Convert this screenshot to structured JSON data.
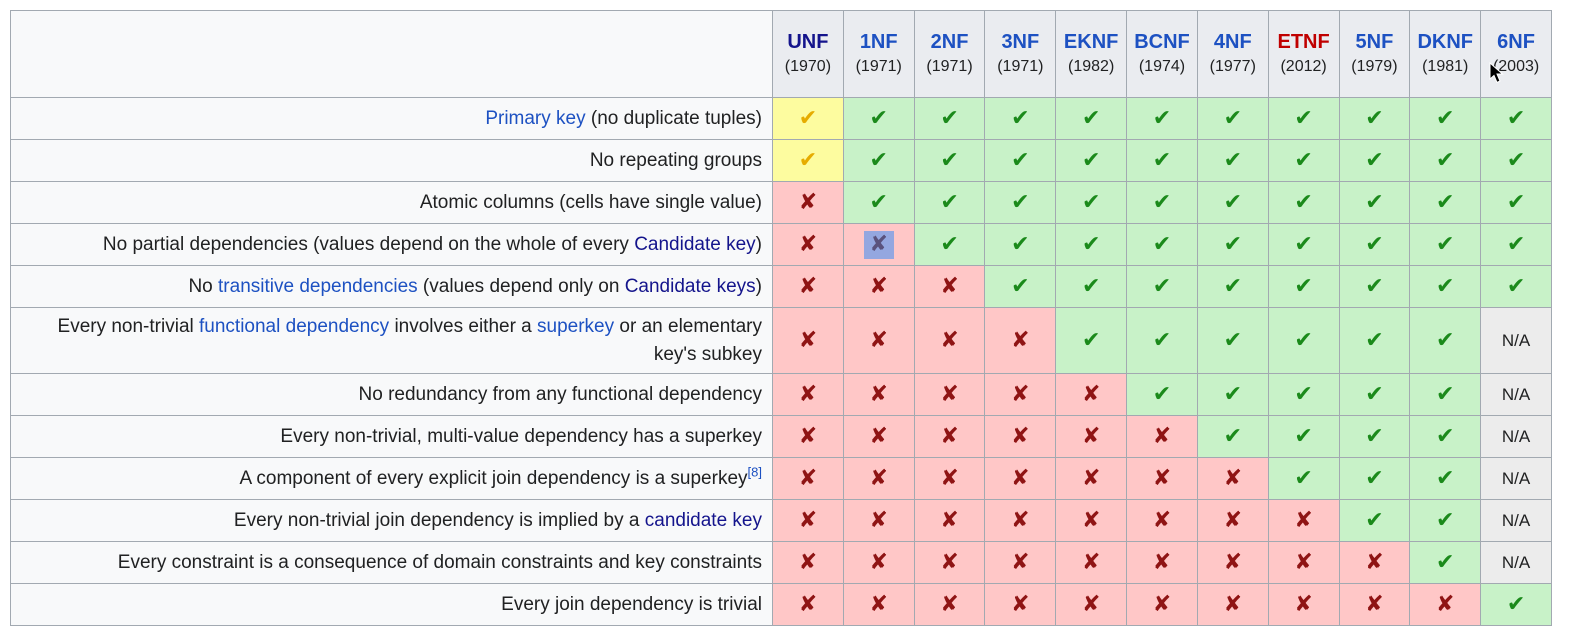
{
  "title": "Normal forms comparison table",
  "symbols": {
    "check": "✔",
    "cross": "✘",
    "na": "N/A"
  },
  "colors": {
    "link_blue": "#1d51c2",
    "link_navy": "#14148c",
    "link_red": "#c00000",
    "check_green": "#1b8a1b",
    "check_amber": "#e6ac00",
    "cross_red": "#8f1414",
    "bg_yes": "#c8f2c8",
    "bg_partial": "#fdfc9f",
    "bg_no": "#ffc7c7",
    "bg_na": "#ececec",
    "bg_header": "#eaecf0",
    "bg_label": "#f8f9fa",
    "border": "#a2a9b1",
    "selection_bg": "#94a7e0",
    "selection_fg": "#5a527d",
    "text": "#202122"
  },
  "header": {
    "corner": "",
    "columns": [
      {
        "abbr": "UNF",
        "year": "(1970)",
        "style": "visited"
      },
      {
        "abbr": "1NF",
        "year": "(1971)",
        "style": "link"
      },
      {
        "abbr": "2NF",
        "year": "(1971)",
        "style": "link"
      },
      {
        "abbr": "3NF",
        "year": "(1971)",
        "style": "link"
      },
      {
        "abbr": "EKNF",
        "year": "(1982)",
        "style": "link"
      },
      {
        "abbr": "BCNF",
        "year": "(1974)",
        "style": "link"
      },
      {
        "abbr": "4NF",
        "year": "(1977)",
        "style": "link"
      },
      {
        "abbr": "ETNF",
        "year": "(2012)",
        "style": "redlink"
      },
      {
        "abbr": "5NF",
        "year": "(1979)",
        "style": "link"
      },
      {
        "abbr": "DKNF",
        "year": "(1981)",
        "style": "link"
      },
      {
        "abbr": "6NF",
        "year": "(2003)",
        "style": "link"
      }
    ]
  },
  "rows": [
    {
      "label": [
        {
          "text": "Primary key",
          "link": "blue"
        },
        {
          "text": " (no duplicate tuples)"
        }
      ],
      "cells": [
        "partial",
        "yes",
        "yes",
        "yes",
        "yes",
        "yes",
        "yes",
        "yes",
        "yes",
        "yes",
        "yes"
      ]
    },
    {
      "label": [
        {
          "text": "No repeating groups"
        }
      ],
      "cells": [
        "partial",
        "yes",
        "yes",
        "yes",
        "yes",
        "yes",
        "yes",
        "yes",
        "yes",
        "yes",
        "yes"
      ]
    },
    {
      "label": [
        {
          "text": "Atomic columns (cells have single value)"
        }
      ],
      "cells": [
        "no",
        "yes",
        "yes",
        "yes",
        "yes",
        "yes",
        "yes",
        "yes",
        "yes",
        "yes",
        "yes"
      ]
    },
    {
      "label": [
        {
          "text": "No partial dependencies (values depend on the whole of every "
        },
        {
          "text": "Candidate key",
          "link": "navy"
        },
        {
          "text": ")"
        }
      ],
      "cells": [
        "no",
        "no_selected",
        "yes",
        "yes",
        "yes",
        "yes",
        "yes",
        "yes",
        "yes",
        "yes",
        "yes"
      ]
    },
    {
      "label": [
        {
          "text": "No "
        },
        {
          "text": "transitive dependencies",
          "link": "blue"
        },
        {
          "text": " (values depend only on "
        },
        {
          "text": "Candidate keys",
          "link": "navy"
        },
        {
          "text": ")"
        }
      ],
      "cells": [
        "no",
        "no",
        "no",
        "yes",
        "yes",
        "yes",
        "yes",
        "yes",
        "yes",
        "yes",
        "yes"
      ]
    },
    {
      "label": [
        {
          "text": "Every non-trivial "
        },
        {
          "text": "functional dependency",
          "link": "blue"
        },
        {
          "text": " involves either a "
        },
        {
          "text": "superkey",
          "link": "blue"
        },
        {
          "text": " or an elementary key's subkey"
        }
      ],
      "cells": [
        "no",
        "no",
        "no",
        "no",
        "yes",
        "yes",
        "yes",
        "yes",
        "yes",
        "yes",
        "na"
      ]
    },
    {
      "label": [
        {
          "text": "No redundancy from any functional dependency"
        }
      ],
      "cells": [
        "no",
        "no",
        "no",
        "no",
        "no",
        "yes",
        "yes",
        "yes",
        "yes",
        "yes",
        "na"
      ]
    },
    {
      "label": [
        {
          "text": "Every non-trivial, multi-value dependency has a superkey"
        }
      ],
      "cells": [
        "no",
        "no",
        "no",
        "no",
        "no",
        "no",
        "yes",
        "yes",
        "yes",
        "yes",
        "na"
      ]
    },
    {
      "label": [
        {
          "text": "A component of every explicit join dependency is a superkey"
        },
        {
          "text": "[8]",
          "link": "blue",
          "sup": true
        }
      ],
      "cells": [
        "no",
        "no",
        "no",
        "no",
        "no",
        "no",
        "no",
        "yes",
        "yes",
        "yes",
        "na"
      ]
    },
    {
      "label": [
        {
          "text": "Every non-trivial join dependency is implied by a "
        },
        {
          "text": "candidate key",
          "link": "navy"
        }
      ],
      "cells": [
        "no",
        "no",
        "no",
        "no",
        "no",
        "no",
        "no",
        "no",
        "yes",
        "yes",
        "na"
      ]
    },
    {
      "label": [
        {
          "text": "Every constraint is a consequence of domain constraints and key constraints"
        }
      ],
      "cells": [
        "no",
        "no",
        "no",
        "no",
        "no",
        "no",
        "no",
        "no",
        "no",
        "yes",
        "na"
      ]
    },
    {
      "label": [
        {
          "text": "Every join dependency is trivial"
        }
      ],
      "cells": [
        "no",
        "no",
        "no",
        "no",
        "no",
        "no",
        "no",
        "no",
        "no",
        "no",
        "yes"
      ]
    }
  ]
}
